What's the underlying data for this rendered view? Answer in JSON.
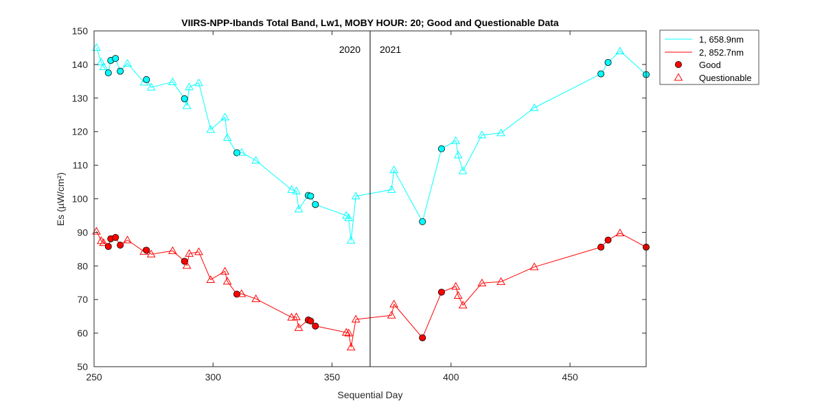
{
  "chart_data": {
    "type": "line",
    "title": "VIIRS-NPP-Ibands Total Band,  Lw1, MOBY HOUR: 20;  Good and Questionable Data",
    "xlabel": "Sequential Day",
    "ylabel": "Es (µW/cm²)",
    "xlim": [
      250,
      482
    ],
    "ylim": [
      50,
      150
    ],
    "xticks": [
      250,
      300,
      350,
      400,
      450
    ],
    "yticks": [
      50,
      60,
      70,
      80,
      90,
      100,
      110,
      120,
      130,
      140,
      150
    ],
    "grid": false,
    "divider": {
      "x": 366,
      "left_label": "2020",
      "right_label": "2021"
    },
    "legend": {
      "position": "outside-top-right",
      "entries": [
        "1, 658.9nm",
        "2, 852.7nm",
        "Good",
        "Questionable"
      ]
    },
    "series": [
      {
        "name": "1, 658.9nm",
        "color": "#00ffff",
        "points": [
          {
            "x": 251,
            "y": 145.0,
            "q": "Q"
          },
          {
            "x": 253,
            "y": 140.7,
            "q": "Q"
          },
          {
            "x": 254,
            "y": 139.3,
            "q": "Q"
          },
          {
            "x": 256,
            "y": 137.5,
            "q": "G"
          },
          {
            "x": 257,
            "y": 141.2,
            "q": "G"
          },
          {
            "x": 259,
            "y": 141.8,
            "q": "G"
          },
          {
            "x": 261,
            "y": 138.0,
            "q": "G"
          },
          {
            "x": 264,
            "y": 140.3,
            "q": "Q"
          },
          {
            "x": 271,
            "y": 134.7,
            "q": "Q"
          },
          {
            "x": 272,
            "y": 135.5,
            "q": "G"
          },
          {
            "x": 274,
            "y": 133.2,
            "q": "Q"
          },
          {
            "x": 283,
            "y": 134.8,
            "q": "Q"
          },
          {
            "x": 288,
            "y": 129.8,
            "q": "G"
          },
          {
            "x": 289,
            "y": 127.7,
            "q": "Q"
          },
          {
            "x": 290,
            "y": 133.3,
            "q": "Q"
          },
          {
            "x": 294,
            "y": 134.5,
            "q": "Q"
          },
          {
            "x": 299,
            "y": 120.6,
            "q": "Q"
          },
          {
            "x": 305,
            "y": 124.3,
            "q": "Q"
          },
          {
            "x": 306,
            "y": 118.2,
            "q": "Q"
          },
          {
            "x": 310,
            "y": 113.7,
            "q": "G"
          },
          {
            "x": 312,
            "y": 113.8,
            "q": "Q"
          },
          {
            "x": 318,
            "y": 111.4,
            "q": "Q"
          },
          {
            "x": 333,
            "y": 102.7,
            "q": "Q"
          },
          {
            "x": 335,
            "y": 102.3,
            "q": "Q"
          },
          {
            "x": 336,
            "y": 96.9,
            "q": "Q"
          },
          {
            "x": 340,
            "y": 101.0,
            "q": "G"
          },
          {
            "x": 341,
            "y": 100.8,
            "q": "G"
          },
          {
            "x": 343,
            "y": 98.3,
            "q": "G"
          },
          {
            "x": 356,
            "y": 95.0,
            "q": "Q"
          },
          {
            "x": 357,
            "y": 94.3,
            "q": "Q"
          },
          {
            "x": 358,
            "y": 87.6,
            "q": "Q"
          },
          {
            "x": 360,
            "y": 100.8,
            "q": "Q"
          },
          {
            "x": 375,
            "y": 102.7,
            "q": "Q"
          },
          {
            "x": 376,
            "y": 108.6,
            "q": "Q"
          },
          {
            "x": 388,
            "y": 93.2,
            "q": "G"
          },
          {
            "x": 396,
            "y": 114.9,
            "q": "G"
          },
          {
            "x": 402,
            "y": 117.3,
            "q": "Q"
          },
          {
            "x": 403,
            "y": 113.0,
            "q": "Q"
          },
          {
            "x": 405,
            "y": 108.3,
            "q": "Q"
          },
          {
            "x": 413,
            "y": 119.0,
            "q": "Q"
          },
          {
            "x": 421,
            "y": 119.6,
            "q": "Q"
          },
          {
            "x": 435,
            "y": 127.1,
            "q": "Q"
          },
          {
            "x": 463,
            "y": 137.2,
            "q": "G"
          },
          {
            "x": 466,
            "y": 140.6,
            "q": "G"
          },
          {
            "x": 471,
            "y": 144.0,
            "q": "Q"
          },
          {
            "x": 482,
            "y": 137.0,
            "q": "G"
          }
        ]
      },
      {
        "name": "2, 852.7nm",
        "color": "#ff0000",
        "points": [
          {
            "x": 251,
            "y": 90.3,
            "q": "Q"
          },
          {
            "x": 253,
            "y": 87.5,
            "q": "Q"
          },
          {
            "x": 254,
            "y": 86.9,
            "q": "Q"
          },
          {
            "x": 256,
            "y": 85.8,
            "q": "G"
          },
          {
            "x": 257,
            "y": 88.1,
            "q": "G"
          },
          {
            "x": 259,
            "y": 88.5,
            "q": "G"
          },
          {
            "x": 261,
            "y": 86.2,
            "q": "G"
          },
          {
            "x": 264,
            "y": 87.7,
            "q": "Q"
          },
          {
            "x": 271,
            "y": 84.3,
            "q": "Q"
          },
          {
            "x": 272,
            "y": 84.7,
            "q": "G"
          },
          {
            "x": 274,
            "y": 83.5,
            "q": "Q"
          },
          {
            "x": 283,
            "y": 84.5,
            "q": "Q"
          },
          {
            "x": 288,
            "y": 81.4,
            "q": "G"
          },
          {
            "x": 289,
            "y": 80.1,
            "q": "Q"
          },
          {
            "x": 290,
            "y": 83.7,
            "q": "Q"
          },
          {
            "x": 294,
            "y": 84.2,
            "q": "Q"
          },
          {
            "x": 299,
            "y": 75.9,
            "q": "Q"
          },
          {
            "x": 305,
            "y": 78.4,
            "q": "Q"
          },
          {
            "x": 306,
            "y": 75.4,
            "q": "Q"
          },
          {
            "x": 310,
            "y": 71.6,
            "q": "G"
          },
          {
            "x": 312,
            "y": 71.7,
            "q": "Q"
          },
          {
            "x": 318,
            "y": 70.2,
            "q": "Q"
          },
          {
            "x": 333,
            "y": 64.7,
            "q": "Q"
          },
          {
            "x": 335,
            "y": 64.8,
            "q": "Q"
          },
          {
            "x": 336,
            "y": 61.6,
            "q": "Q"
          },
          {
            "x": 340,
            "y": 63.9,
            "q": "G"
          },
          {
            "x": 341,
            "y": 63.6,
            "q": "G"
          },
          {
            "x": 343,
            "y": 62.1,
            "q": "G"
          },
          {
            "x": 356,
            "y": 60.2,
            "q": "Q"
          },
          {
            "x": 357,
            "y": 60.0,
            "q": "Q"
          },
          {
            "x": 358,
            "y": 55.8,
            "q": "Q"
          },
          {
            "x": 360,
            "y": 64.1,
            "q": "Q"
          },
          {
            "x": 375,
            "y": 65.3,
            "q": "Q"
          },
          {
            "x": 376,
            "y": 68.6,
            "q": "Q"
          },
          {
            "x": 388,
            "y": 58.6,
            "q": "G"
          },
          {
            "x": 396,
            "y": 72.2,
            "q": "G"
          },
          {
            "x": 402,
            "y": 73.9,
            "q": "Q"
          },
          {
            "x": 403,
            "y": 71.2,
            "q": "Q"
          },
          {
            "x": 405,
            "y": 68.3,
            "q": "Q"
          },
          {
            "x": 413,
            "y": 74.9,
            "q": "Q"
          },
          {
            "x": 421,
            "y": 75.3,
            "q": "Q"
          },
          {
            "x": 435,
            "y": 79.7,
            "q": "Q"
          },
          {
            "x": 463,
            "y": 85.6,
            "q": "G"
          },
          {
            "x": 466,
            "y": 87.7,
            "q": "G"
          },
          {
            "x": 471,
            "y": 89.8,
            "q": "Q"
          },
          {
            "x": 482,
            "y": 85.6,
            "q": "G"
          }
        ]
      }
    ]
  }
}
